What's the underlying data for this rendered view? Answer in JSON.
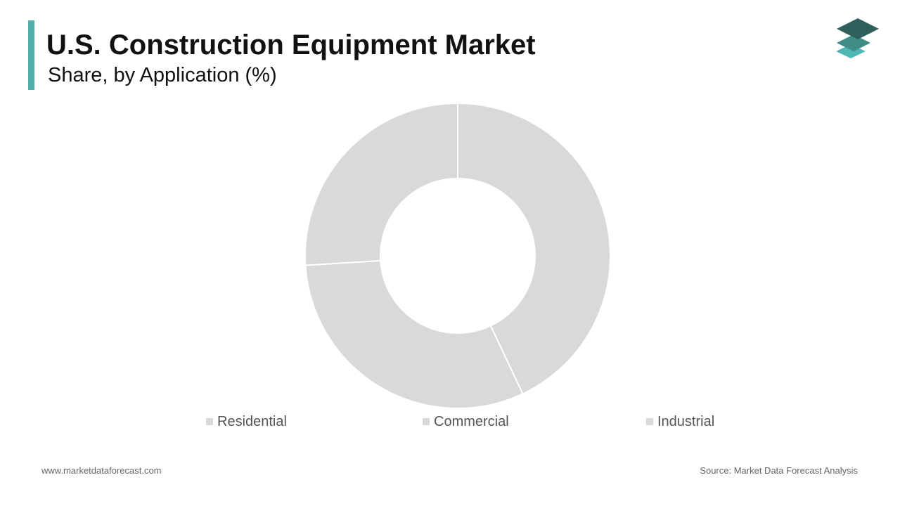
{
  "header": {
    "title": "U.S. Construction Equipment Market",
    "subtitle": "Share, by Application (%)",
    "accent_color": "#4fb0ae"
  },
  "logo": {
    "icon": "stacked-layers-logo",
    "colors": [
      "#2f5f5a",
      "#3f8b85",
      "#4fb7b3"
    ]
  },
  "chart_data": {
    "type": "donut",
    "title": "U.S. Construction Equipment Market",
    "subtitle": "Share, by Application (%)",
    "categories": [
      "Residential",
      "Commercial",
      "Industrial"
    ],
    "values": [
      43,
      31,
      26
    ],
    "colors": [
      "#d9d9d9",
      "#d9d9d9",
      "#d9d9d9"
    ],
    "start_angle_deg": 0,
    "direction": "clockwise",
    "legend_position": "bottom",
    "data_labels_shown": false
  },
  "footer": {
    "website": "www.marketdataforecast.com",
    "source": "Source: Market Data Forecast Analysis"
  }
}
